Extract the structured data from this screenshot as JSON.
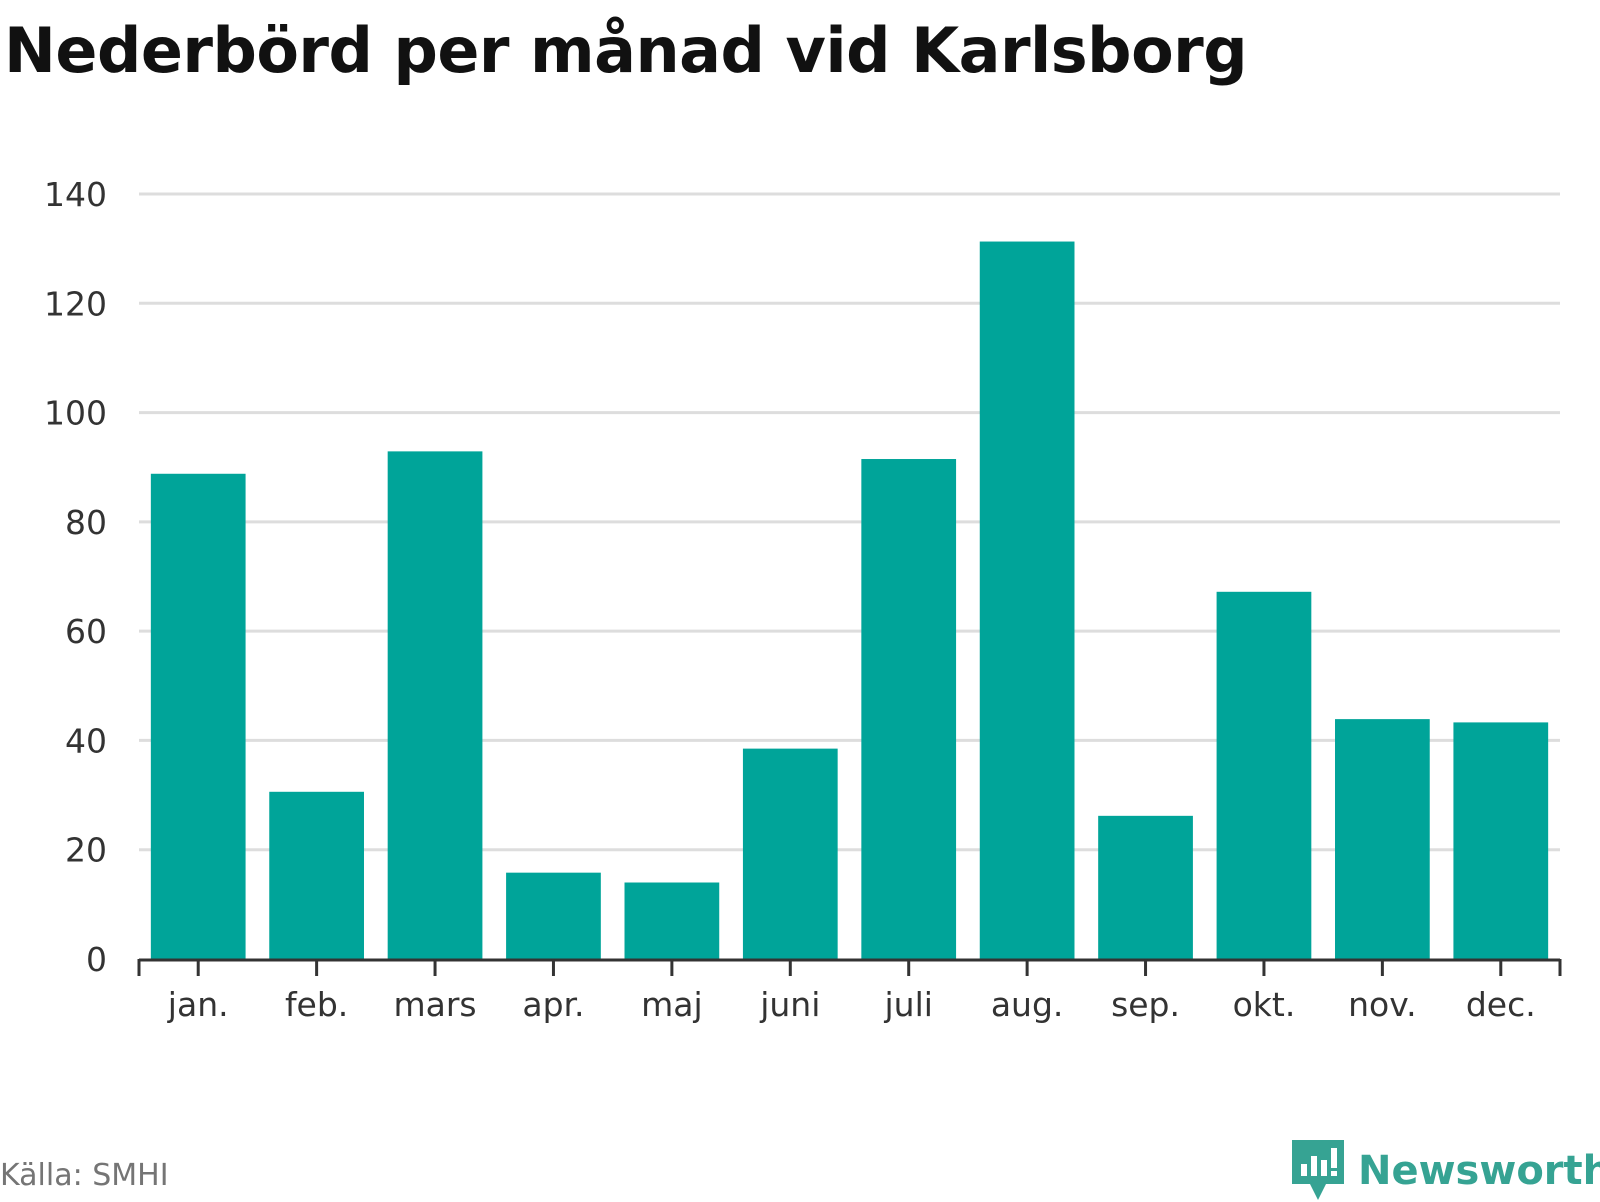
{
  "chart_data": {
    "type": "bar",
    "title": "Nederbörd per månad vid Karlsborg",
    "categories": [
      "jan.",
      "feb.",
      "mars",
      "apr.",
      "maj",
      "juni",
      "juli",
      "aug.",
      "sep.",
      "okt.",
      "nov.",
      "dec."
    ],
    "values": [
      88.8,
      30.6,
      92.9,
      15.8,
      14.0,
      38.5,
      91.5,
      131.3,
      26.2,
      67.2,
      43.9,
      43.3
    ],
    "ylim": [
      0,
      140
    ],
    "yticks": [
      0,
      20,
      40,
      60,
      80,
      100,
      120,
      140
    ],
    "xlabel": "",
    "ylabel": "",
    "grid": true,
    "bar_color": "#00a499"
  },
  "footer": {
    "source": "Källa: SMHI",
    "brand": "Newsworthy"
  },
  "colors": {
    "brand": "#36a393",
    "grid": "#dddddd",
    "axis": "#333333"
  },
  "icons": {
    "brand_logo": "newsworthy-logo-icon"
  }
}
